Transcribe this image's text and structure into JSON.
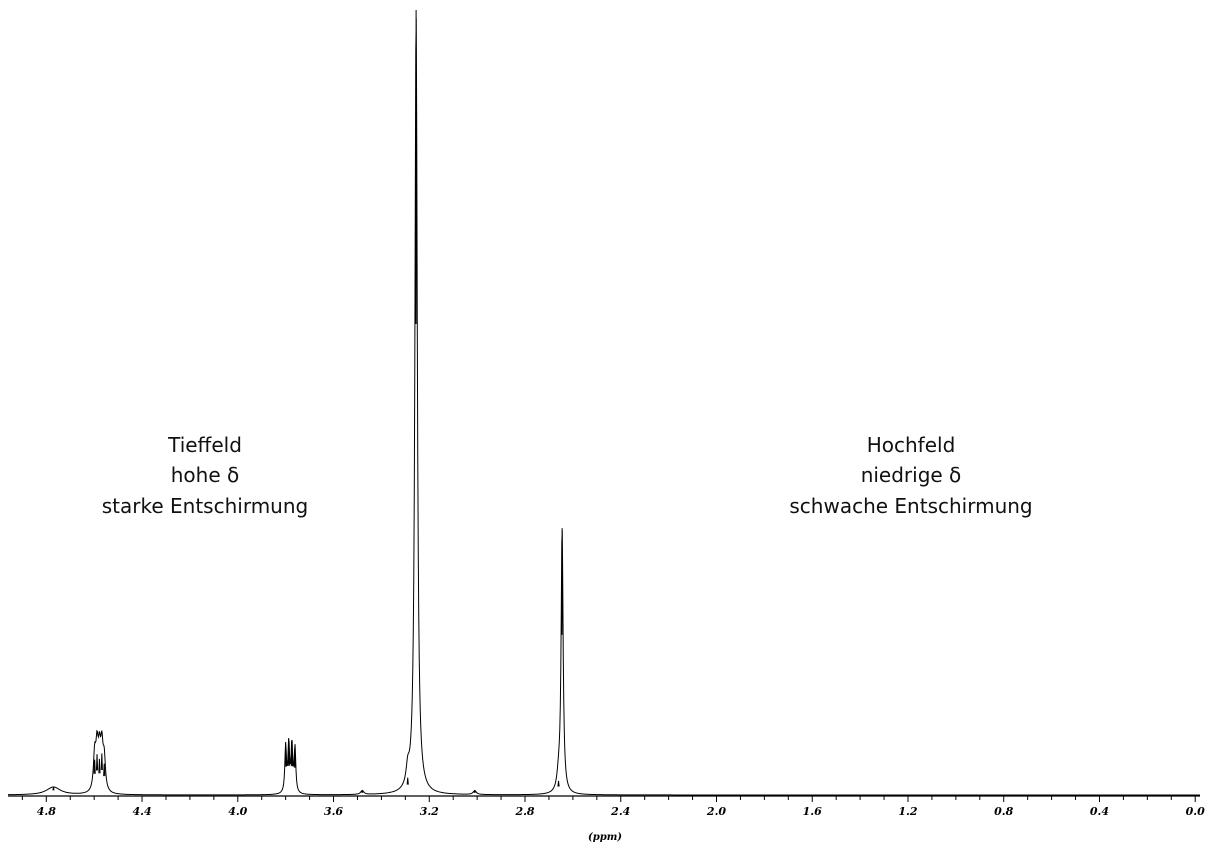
{
  "chart_data": {
    "type": "line",
    "title": "",
    "xlabel": "(ppm)",
    "ylabel": "",
    "x_reversed": true,
    "xlim": [
      4.96,
      -0.02
    ],
    "ylim": [
      0,
      1.0
    ],
    "grid": false,
    "ticks": {
      "major": [
        "4.8",
        "4.4",
        "4.0",
        "3.6",
        "3.2",
        "2.8",
        "2.4",
        "2.0",
        "1.6",
        "1.2",
        "0.8",
        "0.4",
        "0.0"
      ],
      "minor_step": 0.1
    },
    "series": [
      {
        "peaks": [
          {
            "center": 4.77,
            "height": 0.01,
            "width": 0.035
          },
          {
            "center": 4.598,
            "height": 0.045,
            "width": 0.006
          },
          {
            "center": 4.588,
            "height": 0.052,
            "width": 0.006
          },
          {
            "center": 4.578,
            "height": 0.046,
            "width": 0.006
          },
          {
            "center": 4.568,
            "height": 0.053,
            "width": 0.006
          },
          {
            "center": 4.558,
            "height": 0.04,
            "width": 0.006
          },
          {
            "center": 3.8,
            "height": 0.06,
            "width": 0.004
          },
          {
            "center": 3.787,
            "height": 0.062,
            "width": 0.004
          },
          {
            "center": 3.774,
            "height": 0.061,
            "width": 0.004
          },
          {
            "center": 3.761,
            "height": 0.058,
            "width": 0.004
          },
          {
            "center": 3.48,
            "height": 0.005,
            "width": 0.008
          },
          {
            "center": 3.29,
            "height": 0.022,
            "width": 0.008
          },
          {
            "center": 3.255,
            "height": 1.0,
            "width": 0.006
          },
          {
            "center": 3.01,
            "height": 0.005,
            "width": 0.008
          },
          {
            "center": 2.66,
            "height": 0.018,
            "width": 0.008
          },
          {
            "center": 2.645,
            "height": 0.34,
            "width": 0.005
          }
        ]
      }
    ],
    "annotations": [
      {
        "lines": [
          "Tieffeld",
          "hohe δ",
          "starke Entschirmung"
        ],
        "x": 4.32
      },
      {
        "lines": [
          "Hochfeld",
          "niedrige δ",
          "schwache Entschirmung"
        ],
        "x": 1.02
      }
    ]
  }
}
